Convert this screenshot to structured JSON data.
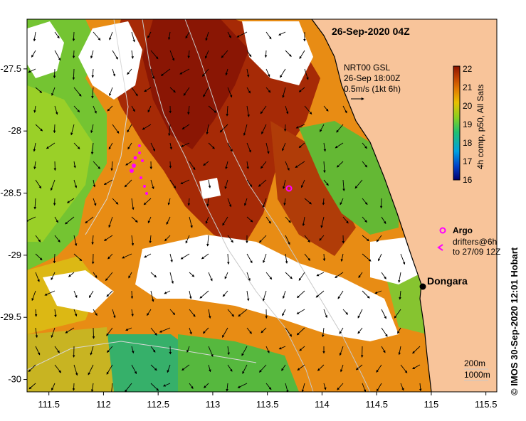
{
  "title": "26-Sep-2020 04Z",
  "credit": "©  IMOS 30-Sep-2020 12:01 Hobart",
  "current_box": {
    "lines": [
      "NRT00 GSL",
      "26-Sep 18:00Z",
      "0.5m/s (1kt 6h)"
    ]
  },
  "colorbar": {
    "label": "4h comp, p50, All Sats",
    "ticks": [
      "22",
      "21",
      "20",
      "19",
      "18",
      "17",
      "16"
    ],
    "min": 16,
    "max": 22,
    "colors": [
      "#00006e",
      "#0040c8",
      "#00a0e0",
      "#20c070",
      "#8ad020",
      "#e8c000",
      "#e07800",
      "#c04000",
      "#8c1400"
    ]
  },
  "legend": {
    "argo_label": "Argo",
    "drifter_label_1": "drifters@6h",
    "drifter_label_2": "to 27/09 12Z"
  },
  "place": {
    "name": "Dongara",
    "lon": 114.93,
    "lat": -29.25
  },
  "depth_labels": [
    "200m",
    "1000m"
  ],
  "axes": {
    "x_ticks": [
      "111.5",
      "112",
      "112.5",
      "113",
      "113.5",
      "114",
      "114.5",
      "115",
      "115.5"
    ],
    "y_ticks": [
      "-27.5",
      "-28",
      "-28.5",
      "-29",
      "-29.5",
      "-30"
    ],
    "x_range": [
      111.3,
      115.6
    ],
    "y_range": [
      -30.1,
      -27.1
    ]
  },
  "colors": {
    "land": "#f8c49a",
    "cloud": "#ffffff",
    "argo": "#ff00ff",
    "drifter": "#ff00ff"
  }
}
